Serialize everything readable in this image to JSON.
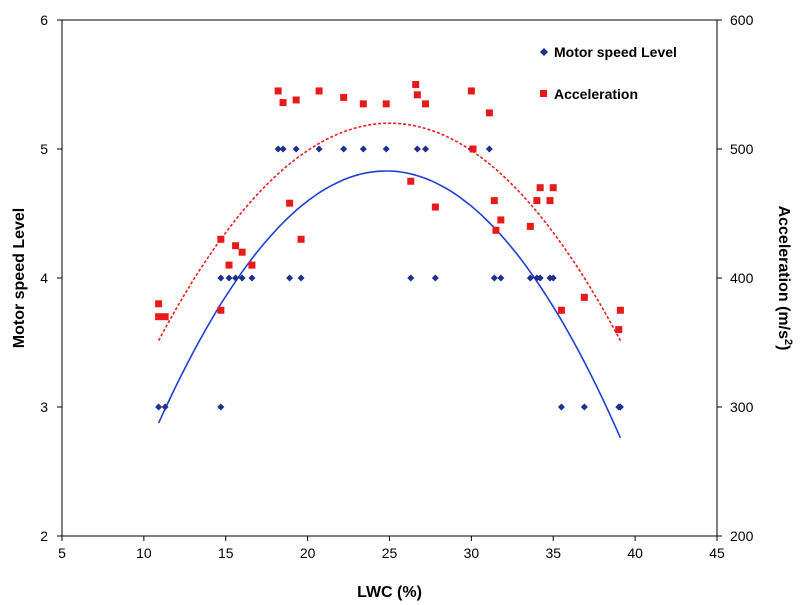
{
  "chart_data": {
    "type": "scatter",
    "x_axis": {
      "label": "LWC (%)",
      "range": [
        5,
        45
      ],
      "ticks": [
        "5",
        "10",
        "15",
        "20",
        "25",
        "30",
        "35",
        "40",
        "45"
      ]
    },
    "y_left": {
      "label": "Motor speed Level",
      "range": [
        2,
        6
      ],
      "ticks": [
        "2",
        "3",
        "4",
        "5",
        "6"
      ]
    },
    "y_right": {
      "label": "Acceleration (m/s",
      "label_superscript": "2",
      "label_suffix": ")",
      "range": [
        200,
        600
      ],
      "ticks": [
        "200",
        "300",
        "400",
        "500",
        "600"
      ]
    },
    "grid": false,
    "legend_position": "top-right",
    "series": [
      {
        "name": "Motor speed Level",
        "axis": "left",
        "marker": "diamond",
        "color": "#1f2f8f",
        "points": [
          [
            10.9,
            3
          ],
          [
            11.3,
            3
          ],
          [
            14.7,
            3
          ],
          [
            14.7,
            4
          ],
          [
            15.2,
            4
          ],
          [
            15.6,
            4
          ],
          [
            16.0,
            4
          ],
          [
            16.6,
            4
          ],
          [
            18.2,
            5
          ],
          [
            18.5,
            5
          ],
          [
            18.9,
            4
          ],
          [
            19.3,
            5
          ],
          [
            19.6,
            4
          ],
          [
            20.7,
            5
          ],
          [
            22.2,
            5
          ],
          [
            23.4,
            5
          ],
          [
            24.8,
            5
          ],
          [
            26.3,
            4
          ],
          [
            26.7,
            5
          ],
          [
            27.2,
            5
          ],
          [
            27.8,
            4
          ],
          [
            30.0,
            5
          ],
          [
            31.1,
            5
          ],
          [
            31.4,
            4
          ],
          [
            31.8,
            4
          ],
          [
            33.6,
            4
          ],
          [
            34.0,
            4
          ],
          [
            34.2,
            4
          ],
          [
            34.8,
            4
          ],
          [
            35.0,
            4
          ],
          [
            35.5,
            3
          ],
          [
            36.9,
            3
          ],
          [
            39.0,
            3
          ],
          [
            39.1,
            3
          ]
        ],
        "trend": {
          "type": "polynomial",
          "color": "#1f3fd0",
          "style": "solid",
          "x_range": [
            10.9,
            39.1
          ],
          "vertex": [
            24.8,
            4.83
          ],
          "anchors": [
            [
              10.9,
              2.93
            ],
            [
              39.1,
              2.71
            ]
          ]
        }
      },
      {
        "name": "Acceleration",
        "axis": "right",
        "marker": "square",
        "color": "#e81919",
        "points": [
          [
            10.9,
            380
          ],
          [
            10.9,
            370
          ],
          [
            11.3,
            370
          ],
          [
            14.7,
            430
          ],
          [
            14.7,
            375
          ],
          [
            15.2,
            410
          ],
          [
            15.6,
            425
          ],
          [
            16.0,
            420
          ],
          [
            16.6,
            410
          ],
          [
            18.2,
            545
          ],
          [
            18.5,
            536
          ],
          [
            18.9,
            458
          ],
          [
            19.3,
            538
          ],
          [
            19.6,
            430
          ],
          [
            20.7,
            545
          ],
          [
            22.2,
            540
          ],
          [
            23.4,
            535
          ],
          [
            24.8,
            535
          ],
          [
            26.3,
            475
          ],
          [
            26.6,
            550
          ],
          [
            26.7,
            542
          ],
          [
            27.2,
            535
          ],
          [
            27.8,
            455
          ],
          [
            30.0,
            545
          ],
          [
            30.1,
            500
          ],
          [
            31.1,
            528
          ],
          [
            31.4,
            460
          ],
          [
            31.5,
            437
          ],
          [
            31.8,
            445
          ],
          [
            33.6,
            440
          ],
          [
            34.0,
            460
          ],
          [
            34.2,
            470
          ],
          [
            34.8,
            460
          ],
          [
            35.0,
            470
          ],
          [
            35.5,
            375
          ],
          [
            36.9,
            385
          ],
          [
            39.0,
            360
          ],
          [
            39.1,
            375
          ]
        ],
        "trend": {
          "type": "polynomial",
          "color": "#e82020",
          "style": "dashed",
          "x_range": [
            10.9,
            39.1
          ],
          "vertex": [
            25.0,
            520
          ],
          "anchors": [
            [
              10.9,
              350
            ],
            [
              39.1,
              353
            ]
          ]
        }
      }
    ]
  }
}
